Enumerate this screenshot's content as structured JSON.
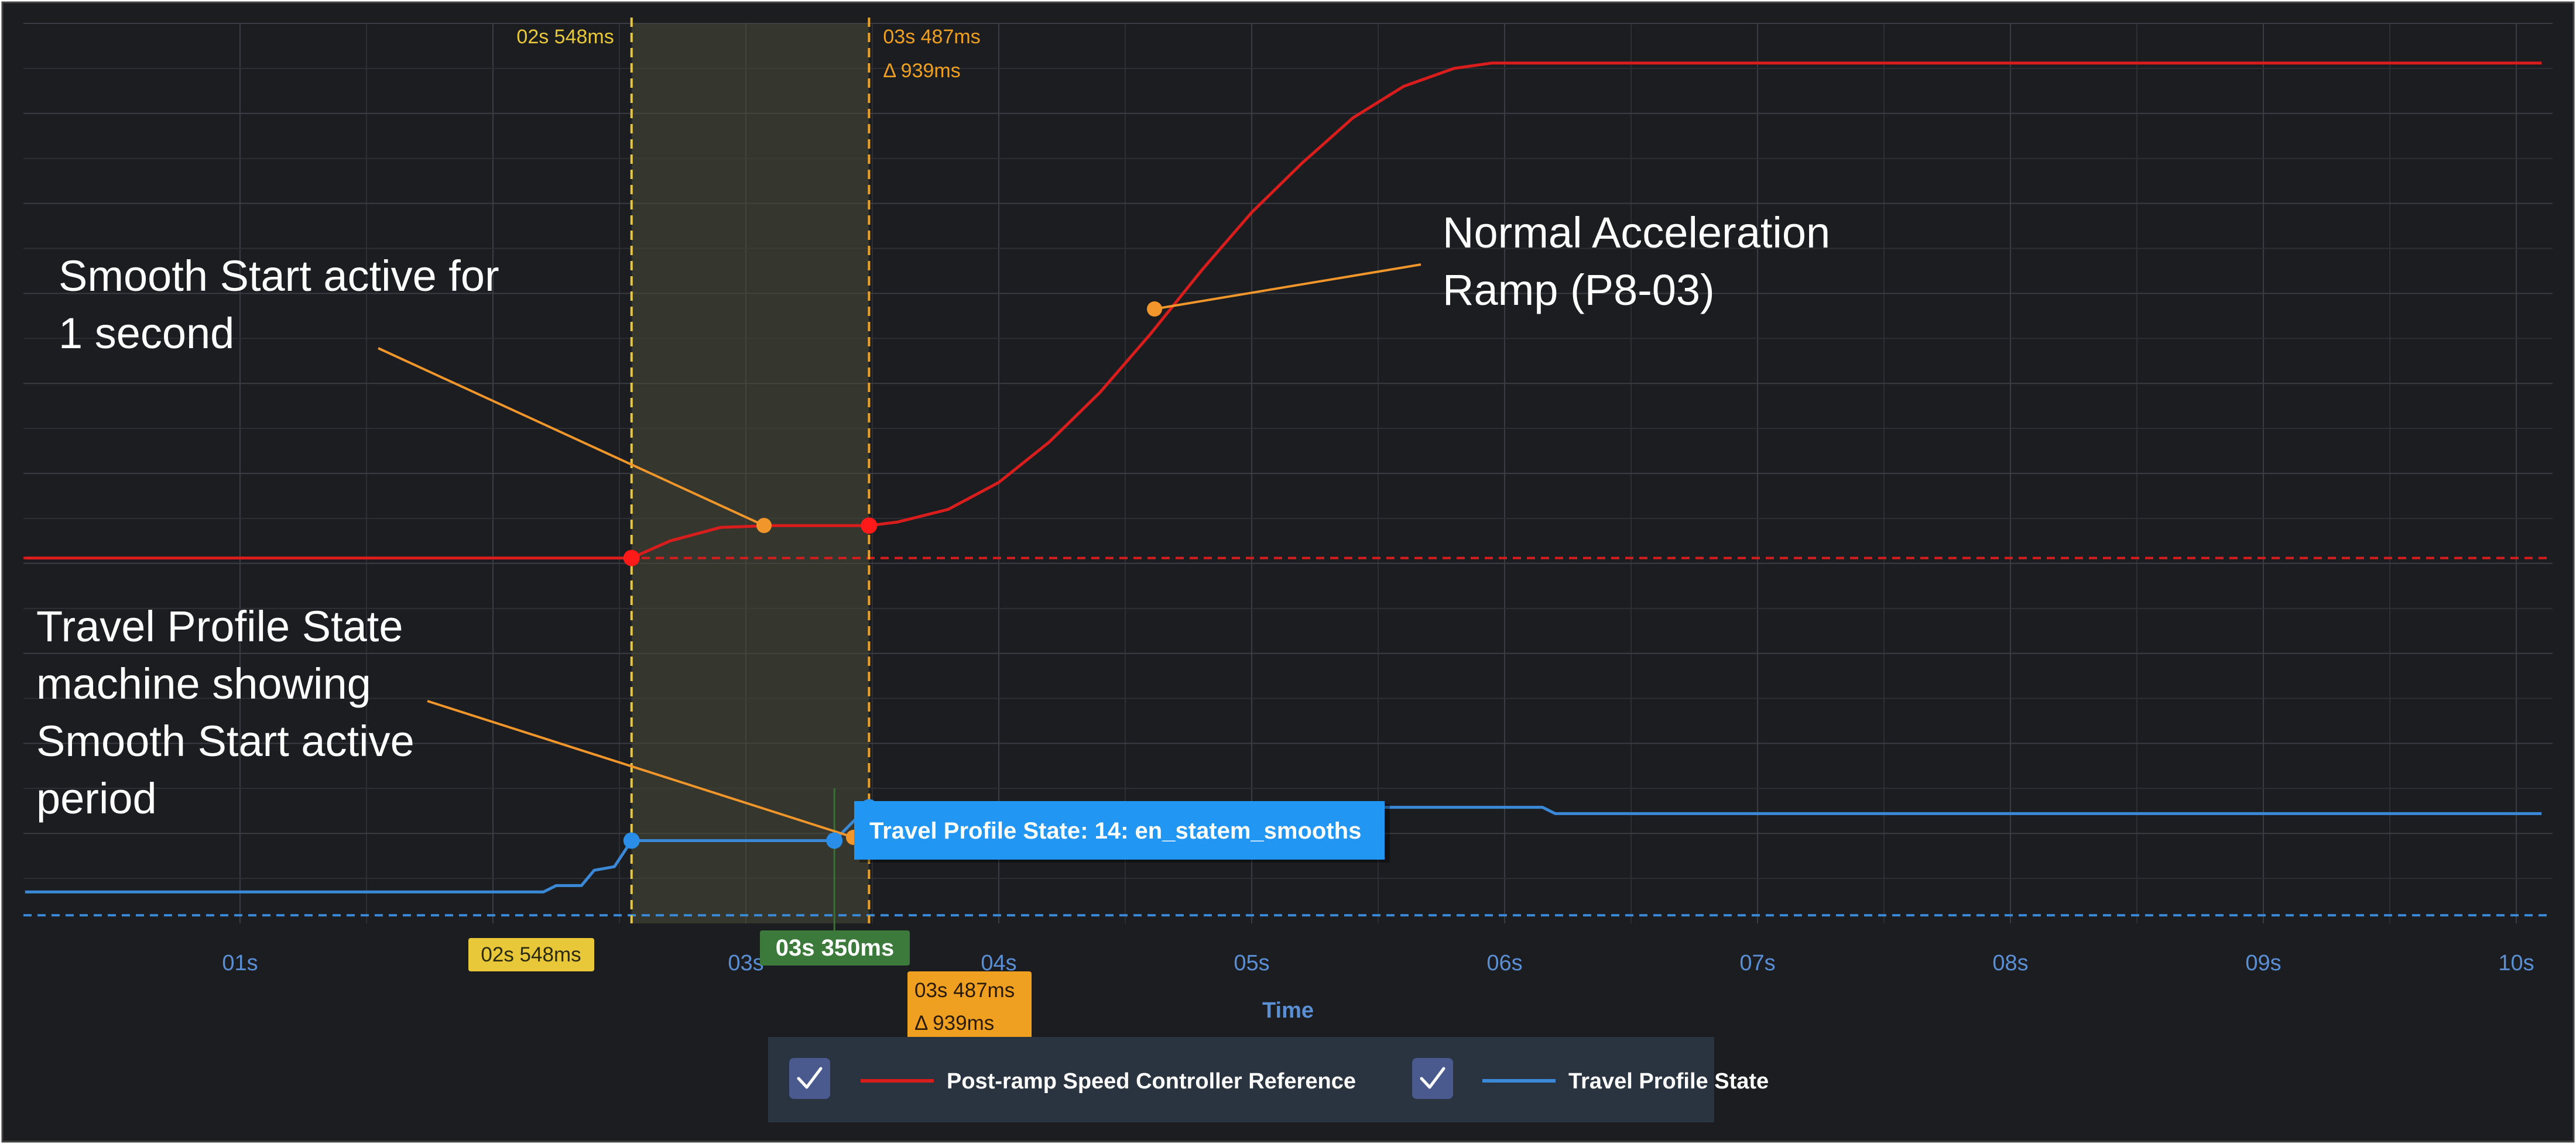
{
  "chart_data": {
    "type": "line",
    "xlabel": "Time",
    "x_ticks": [
      "01s",
      "02s",
      "03s",
      "04s",
      "05s",
      "06s",
      "07s",
      "08s",
      "09s",
      "10s"
    ],
    "xlim": [
      0.15,
      10.1
    ],
    "ylim": [
      0,
      100
    ],
    "grid": true,
    "legend": "bottom-center",
    "series": [
      {
        "name": "Post-ramp Speed Controller Reference",
        "color": "#d91d1d",
        "reference_level": 40.6,
        "points": [
          [
            0.15,
            40.6
          ],
          [
            2.548,
            40.6
          ],
          [
            2.7,
            42.5
          ],
          [
            2.9,
            44.0
          ],
          [
            3.1,
            44.2
          ],
          [
            3.487,
            44.2
          ],
          [
            3.6,
            44.6
          ],
          [
            3.8,
            46.0
          ],
          [
            4.0,
            49.0
          ],
          [
            4.2,
            53.5
          ],
          [
            4.4,
            59.0
          ],
          [
            4.6,
            65.5
          ],
          [
            4.8,
            72.5
          ],
          [
            5.0,
            79.0
          ],
          [
            5.2,
            84.5
          ],
          [
            5.4,
            89.5
          ],
          [
            5.6,
            93.0
          ],
          [
            5.8,
            95.0
          ],
          [
            5.95,
            95.6
          ],
          [
            10.1,
            95.6
          ]
        ]
      },
      {
        "name": "Travel Profile State",
        "color": "#3a88d6",
        "reference_level": 0.9,
        "points": [
          [
            0.15,
            3.5
          ],
          [
            2.2,
            3.5
          ],
          [
            2.25,
            4.2
          ],
          [
            2.35,
            4.2
          ],
          [
            2.4,
            5.9
          ],
          [
            2.48,
            6.3
          ],
          [
            2.548,
            9.2
          ],
          [
            3.35,
            9.2
          ],
          [
            3.48,
            12.9
          ],
          [
            6.15,
            12.9
          ],
          [
            6.2,
            12.2
          ],
          [
            10.1,
            12.2
          ]
        ]
      }
    ],
    "cursors": [
      {
        "name": "cursor-a",
        "time": 2.548,
        "label": "02s 548ms",
        "color": "#e8c838"
      },
      {
        "name": "cursor-b",
        "time": 3.487,
        "label": "03s 487ms",
        "delta": "Δ 939ms",
        "color": "#f0a020"
      }
    ],
    "hover": {
      "time": 3.35,
      "label": "03s 350ms",
      "tooltip": "Travel Profile State: 14: en_statem_smooths"
    },
    "annotations": [
      {
        "lines": [
          "Smooth Start active for",
          "1 second"
        ]
      },
      {
        "lines": [
          "Normal Acceleration",
          "Ramp (P8-03)"
        ]
      },
      {
        "lines": [
          "Travel Profile State",
          "machine showing",
          "Smooth Start active",
          "period"
        ]
      }
    ],
    "colors": {
      "background": "#1b1d21",
      "grid": "#3a3d43",
      "axis_text": "#5b8fd4",
      "annotation": "#f0962a"
    }
  },
  "legend": {
    "items": [
      {
        "label": "Post-ramp Speed Controller Reference",
        "checked": true
      },
      {
        "label": "Travel Profile State",
        "checked": true
      }
    ],
    "check_icon": "checkmark-icon"
  }
}
